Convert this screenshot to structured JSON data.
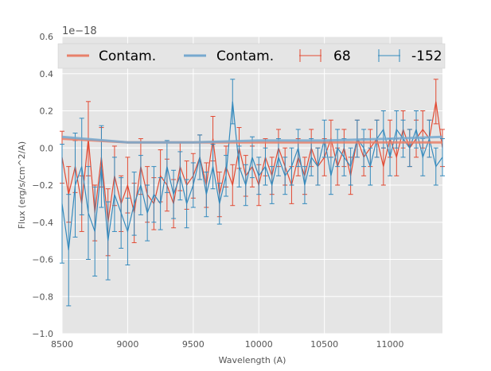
{
  "chart_data": {
    "type": "line",
    "title": "",
    "xlabel": "Wavelength (A)",
    "ylabel": "Flux (erg/s/cm^2/A)",
    "y_offset_label": "1e−18",
    "xlim": [
      8500,
      11400
    ],
    "ylim": [
      -1.0,
      0.6
    ],
    "x_ticks": [
      8500,
      9000,
      9500,
      10000,
      10500,
      11000
    ],
    "x_tick_labels": [
      "8500",
      "9000",
      "9500",
      "10000",
      "10500",
      "11000"
    ],
    "y_ticks": [
      -1.0,
      -0.8,
      -0.6,
      -0.4,
      -0.2,
      0.0,
      0.2,
      0.4,
      0.6
    ],
    "y_tick_labels": [
      "−1.0",
      "−0.8",
      "−0.6",
      "−0.4",
      "−0.2",
      "0.0",
      "0.2",
      "0.4",
      "0.6"
    ],
    "grid": true,
    "legend_position": "top",
    "legend": [
      {
        "label": "Contam.",
        "kind": "line",
        "color": "#e8806a"
      },
      {
        "label": "Contam.",
        "kind": "line",
        "color": "#76a9cf"
      },
      {
        "label": "68",
        "kind": "errorbar",
        "color": "#e24a33"
      },
      {
        "label": "-152",
        "kind": "errorbar",
        "color": "#348abd"
      }
    ],
    "series": [
      {
        "name": "68",
        "color": "#e24a33",
        "x": [
          8500,
          8550,
          8600,
          8650,
          8700,
          8750,
          8800,
          8850,
          8900,
          8950,
          9000,
          9050,
          9100,
          9150,
          9200,
          9250,
          9300,
          9350,
          9400,
          9450,
          9500,
          9550,
          9600,
          9650,
          9700,
          9750,
          9800,
          9850,
          9900,
          9950,
          10000,
          10050,
          10100,
          10150,
          10200,
          10250,
          10300,
          10350,
          10400,
          10450,
          10500,
          10550,
          10600,
          10650,
          10700,
          10750,
          10800,
          10850,
          10900,
          10950,
          11000,
          11050,
          11100,
          11150,
          11200,
          11250,
          11300,
          11350,
          11400
        ],
        "y": [
          -0.05,
          -0.25,
          -0.1,
          -0.3,
          0.05,
          -0.35,
          -0.05,
          -0.4,
          -0.15,
          -0.3,
          -0.2,
          -0.35,
          -0.1,
          -0.25,
          -0.3,
          -0.15,
          -0.2,
          -0.3,
          -0.1,
          -0.2,
          -0.15,
          -0.05,
          -0.2,
          0.05,
          -0.25,
          -0.1,
          -0.2,
          0.0,
          -0.15,
          -0.1,
          -0.2,
          -0.05,
          -0.15,
          0.0,
          -0.1,
          -0.2,
          -0.05,
          -0.15,
          0.0,
          -0.1,
          -0.05,
          0.05,
          -0.1,
          0.0,
          -0.15,
          0.05,
          -0.05,
          0.0,
          0.05,
          -0.1,
          0.05,
          -0.05,
          0.1,
          0.0,
          0.05,
          0.1,
          0.05,
          0.25,
          0.0
        ],
        "err": [
          0.14,
          0.15,
          0.14,
          0.15,
          0.2,
          0.15,
          0.16,
          0.18,
          0.16,
          0.15,
          0.15,
          0.16,
          0.15,
          0.15,
          0.14,
          0.14,
          0.14,
          0.13,
          0.13,
          0.13,
          0.12,
          0.12,
          0.12,
          0.12,
          0.12,
          0.11,
          0.11,
          0.11,
          0.11,
          0.11,
          0.11,
          0.1,
          0.1,
          0.1,
          0.1,
          0.1,
          0.1,
          0.1,
          0.1,
          0.1,
          0.1,
          0.1,
          0.1,
          0.1,
          0.1,
          0.1,
          0.1,
          0.1,
          0.1,
          0.1,
          0.1,
          0.1,
          0.1,
          0.1,
          0.1,
          0.1,
          0.1,
          0.12,
          0.1
        ]
      },
      {
        "name": "-152",
        "color": "#348abd",
        "x": [
          8500,
          8550,
          8600,
          8650,
          8700,
          8750,
          8800,
          8850,
          8900,
          8950,
          9000,
          9050,
          9100,
          9150,
          9200,
          9250,
          9300,
          9350,
          9400,
          9450,
          9500,
          9550,
          9600,
          9650,
          9700,
          9750,
          9800,
          9850,
          9900,
          9950,
          10000,
          10050,
          10100,
          10150,
          10200,
          10250,
          10300,
          10350,
          10400,
          10450,
          10500,
          10550,
          10600,
          10650,
          10700,
          10750,
          10800,
          10850,
          10900,
          10950,
          11000,
          11050,
          11100,
          11150,
          11200,
          11250,
          11300,
          11350,
          11400
        ],
        "y": [
          -0.3,
          -0.55,
          -0.2,
          -0.1,
          -0.35,
          -0.45,
          -0.1,
          -0.5,
          -0.25,
          -0.35,
          -0.45,
          -0.3,
          -0.2,
          -0.35,
          -0.25,
          -0.3,
          -0.1,
          -0.25,
          -0.15,
          -0.3,
          -0.2,
          -0.05,
          -0.25,
          -0.1,
          -0.3,
          -0.15,
          0.25,
          -0.1,
          -0.2,
          -0.05,
          -0.15,
          -0.1,
          -0.2,
          -0.05,
          -0.15,
          -0.1,
          0.0,
          -0.2,
          -0.05,
          -0.1,
          0.05,
          -0.15,
          0.0,
          -0.05,
          -0.1,
          0.05,
          0.0,
          -0.1,
          0.05,
          0.1,
          -0.05,
          0.1,
          0.05,
          0.0,
          0.1,
          -0.05,
          0.05,
          -0.1,
          -0.05
        ],
        "err": [
          0.32,
          0.3,
          0.28,
          0.26,
          0.25,
          0.24,
          0.22,
          0.21,
          0.2,
          0.19,
          0.18,
          0.17,
          0.16,
          0.15,
          0.15,
          0.14,
          0.14,
          0.13,
          0.13,
          0.13,
          0.12,
          0.12,
          0.12,
          0.12,
          0.11,
          0.11,
          0.12,
          0.11,
          0.11,
          0.11,
          0.1,
          0.1,
          0.1,
          0.1,
          0.1,
          0.1,
          0.1,
          0.1,
          0.1,
          0.1,
          0.1,
          0.1,
          0.1,
          0.1,
          0.1,
          0.1,
          0.1,
          0.1,
          0.1,
          0.1,
          0.1,
          0.1,
          0.1,
          0.1,
          0.1,
          0.1,
          0.1,
          0.1,
          0.1
        ]
      },
      {
        "name": "Contam.",
        "color": "#e8806a",
        "style": "thick-line",
        "x": [
          8500,
          9000,
          9500,
          10000,
          10500,
          11000,
          11400
        ],
        "y": [
          0.05,
          0.03,
          0.03,
          0.03,
          0.03,
          0.03,
          0.03
        ]
      },
      {
        "name": "Contam.",
        "color": "#76a9cf",
        "style": "thick-line",
        "x": [
          8500,
          9000,
          9500,
          10000,
          10500,
          11000,
          11400
        ],
        "y": [
          0.06,
          0.03,
          0.03,
          0.04,
          0.04,
          0.05,
          0.06
        ]
      }
    ]
  }
}
